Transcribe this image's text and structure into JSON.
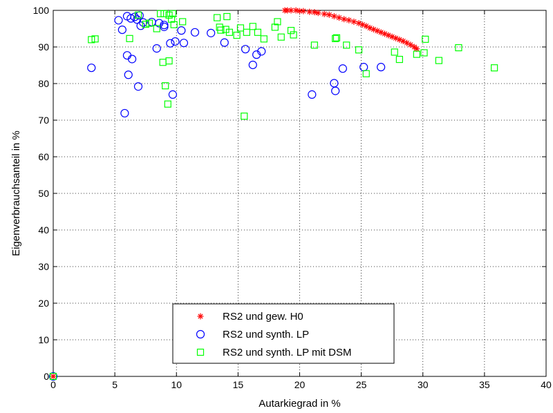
{
  "chart_data": {
    "type": "scatter",
    "title": "",
    "xlabel": "Autarkiegrad in %",
    "ylabel": "Eigenverbrauchsanteil in %",
    "xlim": [
      0,
      40
    ],
    "ylim": [
      0,
      100
    ],
    "xticks": [
      "0",
      "5",
      "10",
      "15",
      "20",
      "25",
      "30",
      "35",
      "40"
    ],
    "yticks": [
      "0",
      "10",
      "20",
      "30",
      "40",
      "50",
      "60",
      "70",
      "80",
      "90",
      "100"
    ],
    "grid": true,
    "legend_position": "bottom-center",
    "series": [
      {
        "name": "RS2 und gew. H0",
        "marker": "star",
        "color": "#ff0000",
        "points": [
          [
            18.8,
            100
          ],
          [
            19.0,
            100
          ],
          [
            19.3,
            100
          ],
          [
            19.7,
            100
          ],
          [
            20.0,
            99.8
          ],
          [
            20.3,
            99.8
          ],
          [
            20.8,
            99.6
          ],
          [
            21.2,
            99.5
          ],
          [
            21.5,
            99.3
          ],
          [
            22.0,
            99.0
          ],
          [
            22.4,
            98.8
          ],
          [
            22.8,
            98.4
          ],
          [
            23.2,
            98.0
          ],
          [
            23.6,
            97.6
          ],
          [
            24.0,
            97.3
          ],
          [
            24.4,
            96.9
          ],
          [
            24.8,
            96.5
          ],
          [
            25.1,
            96.1
          ],
          [
            25.4,
            95.7
          ],
          [
            25.7,
            95.2
          ],
          [
            26.0,
            94.8
          ],
          [
            26.3,
            94.4
          ],
          [
            26.6,
            94.0
          ],
          [
            26.9,
            93.6
          ],
          [
            27.2,
            93.2
          ],
          [
            27.5,
            92.8
          ],
          [
            27.8,
            92.4
          ],
          [
            28.1,
            92.0
          ],
          [
            28.4,
            91.6
          ],
          [
            28.7,
            91.1
          ],
          [
            29.0,
            90.6
          ],
          [
            29.3,
            90.0
          ],
          [
            29.5,
            89.5
          ],
          [
            0,
            0
          ]
        ]
      },
      {
        "name": "RS2 und synth. LP",
        "marker": "circle",
        "color": "#0000ff",
        "points": [
          [
            3.1,
            84.3
          ],
          [
            5.3,
            97.3
          ],
          [
            5.6,
            94.7
          ],
          [
            5.8,
            71.9
          ],
          [
            6.0,
            98.4
          ],
          [
            6.0,
            87.7
          ],
          [
            6.1,
            82.4
          ],
          [
            6.3,
            97.8
          ],
          [
            6.4,
            86.7
          ],
          [
            6.6,
            98.2
          ],
          [
            6.8,
            97.5
          ],
          [
            6.9,
            79.2
          ],
          [
            7.0,
            98.6
          ],
          [
            7.1,
            95.8
          ],
          [
            7.3,
            96.7
          ],
          [
            8.0,
            96.8
          ],
          [
            8.4,
            89.6
          ],
          [
            8.6,
            96.5
          ],
          [
            9.0,
            95.5
          ],
          [
            9.0,
            96.0
          ],
          [
            9.5,
            91.0
          ],
          [
            9.7,
            77.0
          ],
          [
            9.9,
            91.5
          ],
          [
            10.4,
            94.5
          ],
          [
            10.6,
            91.1
          ],
          [
            11.5,
            94.0
          ],
          [
            12.8,
            93.8
          ],
          [
            13.9,
            91.2
          ],
          [
            15.6,
            89.4
          ],
          [
            16.2,
            85.1
          ],
          [
            16.5,
            87.9
          ],
          [
            16.9,
            88.8
          ],
          [
            21.0,
            77.0
          ],
          [
            22.8,
            80.1
          ],
          [
            22.9,
            78.0
          ],
          [
            23.5,
            84.1
          ],
          [
            25.2,
            84.5
          ],
          [
            26.6,
            84.5
          ],
          [
            0,
            0
          ]
        ]
      },
      {
        "name": "RS2 und synth. LP mit DSM",
        "marker": "square",
        "color": "#00ff00",
        "points": [
          [
            3.1,
            92.0
          ],
          [
            3.4,
            92.2
          ],
          [
            6.2,
            92.3
          ],
          [
            6.9,
            98.7
          ],
          [
            7.5,
            96.2
          ],
          [
            7.8,
            96.5
          ],
          [
            8.4,
            95.0
          ],
          [
            8.7,
            99.1
          ],
          [
            8.9,
            85.8
          ],
          [
            9.0,
            99.1
          ],
          [
            9.1,
            79.4
          ],
          [
            9.3,
            74.4
          ],
          [
            9.4,
            86.2
          ],
          [
            9.4,
            98.7
          ],
          [
            9.6,
            97.6
          ],
          [
            9.7,
            99.1
          ],
          [
            9.8,
            96.1
          ],
          [
            10.5,
            96.9
          ],
          [
            13.3,
            98.0
          ],
          [
            13.5,
            95.4
          ],
          [
            13.6,
            94.6
          ],
          [
            14.0,
            94.8
          ],
          [
            14.1,
            98.3
          ],
          [
            14.3,
            94.0
          ],
          [
            14.9,
            93.2
          ],
          [
            15.2,
            95.2
          ],
          [
            15.5,
            71.1
          ],
          [
            15.7,
            94.0
          ],
          [
            16.2,
            95.6
          ],
          [
            16.6,
            94.0
          ],
          [
            17.1,
            92.2
          ],
          [
            18.0,
            95.4
          ],
          [
            18.2,
            96.9
          ],
          [
            18.5,
            92.7
          ],
          [
            19.3,
            94.5
          ],
          [
            19.5,
            93.3
          ],
          [
            21.2,
            90.5
          ],
          [
            22.9,
            92.3
          ],
          [
            23.0,
            92.5
          ],
          [
            23.8,
            90.5
          ],
          [
            24.8,
            89.2
          ],
          [
            25.4,
            82.7
          ],
          [
            27.7,
            88.6
          ],
          [
            28.1,
            86.6
          ],
          [
            29.5,
            88.0
          ],
          [
            30.1,
            88.4
          ],
          [
            30.2,
            92.1
          ],
          [
            31.3,
            86.3
          ],
          [
            32.9,
            89.8
          ],
          [
            35.8,
            84.3
          ],
          [
            0,
            0
          ]
        ]
      }
    ]
  }
}
